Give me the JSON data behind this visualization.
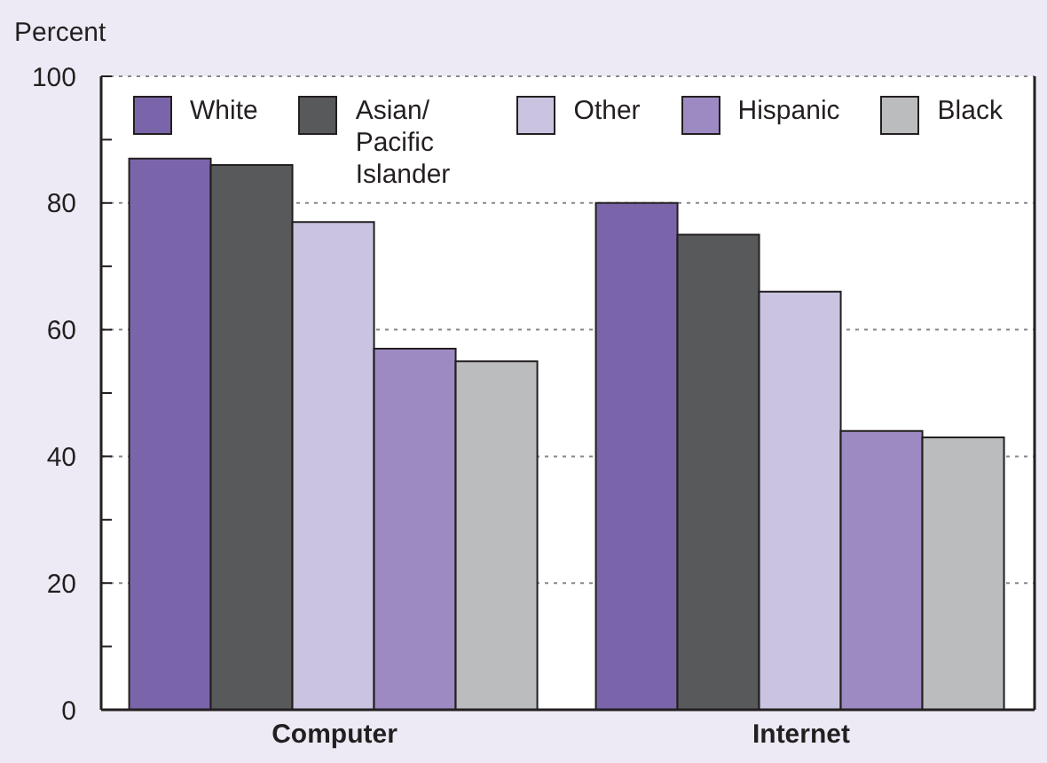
{
  "chart_data": {
    "type": "bar",
    "ylabel": "Percent",
    "categories": [
      "Computer",
      "Internet"
    ],
    "series": [
      {
        "name": "White",
        "color": "#7b65aa",
        "values": [
          87,
          80
        ]
      },
      {
        "name": "Asian/ Pacific Islander",
        "color": "#58595b",
        "values": [
          86,
          75
        ]
      },
      {
        "name": "Other",
        "color": "#cbc4e0",
        "values": [
          77,
          66
        ]
      },
      {
        "name": "Hispanic",
        "color": "#9d8ac2",
        "values": [
          57,
          44
        ]
      },
      {
        "name": "Black",
        "color": "#bbbcbe",
        "values": [
          55,
          43
        ]
      }
    ],
    "ylim": [
      0,
      100
    ],
    "yticks": [
      0,
      {
        "value": 10,
        "label": null
      },
      20,
      {
        "value": 30,
        "label": null
      },
      40,
      {
        "value": 50,
        "label": null
      },
      60,
      {
        "value": 70,
        "label": null
      },
      80,
      {
        "value": 90,
        "label": null
      },
      100
    ],
    "grid": "y",
    "legend": "top"
  }
}
